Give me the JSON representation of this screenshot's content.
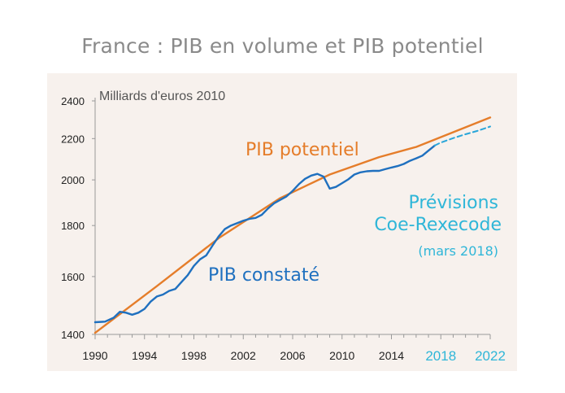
{
  "title": "France : PIB en volume et PIB potentiel",
  "colors": {
    "potential": "#e57d2a",
    "observed": "#1f70bf",
    "forecast": "#2aa6d9",
    "forecast_label": "#2fb6d8",
    "axis": "#999999",
    "background": "#f7f1ed"
  },
  "chart_data": {
    "type": "line",
    "title": "France : PIB en volume et PIB potentiel",
    "ylabel": "Milliards d'euros 2010",
    "xlim": [
      1990,
      2022
    ],
    "ylim": [
      1400,
      2400
    ],
    "yscale": "log",
    "yticks": [
      1400,
      1600,
      1800,
      2000,
      2200,
      2400
    ],
    "xticks": [
      1990,
      1994,
      1998,
      2002,
      2006,
      2010,
      2014
    ],
    "xticks_forecast": [
      2018,
      2022
    ],
    "series": [
      {
        "name": "PIB potentiel",
        "points": [
          [
            1990,
            1405
          ],
          [
            1995,
            1565
          ],
          [
            2000,
            1748
          ],
          [
            2005,
            1918
          ],
          [
            2009,
            2025
          ],
          [
            2013,
            2108
          ],
          [
            2016,
            2158
          ],
          [
            2022,
            2310
          ]
        ]
      },
      {
        "name": "PIB constaté",
        "points": [
          [
            1990,
            1440
          ],
          [
            1990.8,
            1442
          ],
          [
            1991.5,
            1455
          ],
          [
            1992,
            1475
          ],
          [
            1992.5,
            1472
          ],
          [
            1993,
            1465
          ],
          [
            1993.5,
            1472
          ],
          [
            1994,
            1485
          ],
          [
            1994.5,
            1510
          ],
          [
            1995,
            1528
          ],
          [
            1995.5,
            1535
          ],
          [
            1996,
            1548
          ],
          [
            1996.5,
            1555
          ],
          [
            1997,
            1580
          ],
          [
            1997.5,
            1605
          ],
          [
            1998,
            1640
          ],
          [
            1998.5,
            1665
          ],
          [
            1999,
            1680
          ],
          [
            1999.5,
            1718
          ],
          [
            2000,
            1755
          ],
          [
            2000.5,
            1785
          ],
          [
            2001,
            1800
          ],
          [
            2001.5,
            1810
          ],
          [
            2002,
            1820
          ],
          [
            2002.5,
            1828
          ],
          [
            2003,
            1832
          ],
          [
            2003.5,
            1845
          ],
          [
            2004,
            1872
          ],
          [
            2004.5,
            1895
          ],
          [
            2005,
            1910
          ],
          [
            2005.5,
            1925
          ],
          [
            2006,
            1950
          ],
          [
            2006.5,
            1980
          ],
          [
            2007,
            2005
          ],
          [
            2007.5,
            2020
          ],
          [
            2008,
            2028
          ],
          [
            2008.5,
            2015
          ],
          [
            2009,
            1960
          ],
          [
            2009.5,
            1968
          ],
          [
            2010,
            1985
          ],
          [
            2010.5,
            2002
          ],
          [
            2011,
            2025
          ],
          [
            2011.5,
            2035
          ],
          [
            2012,
            2040
          ],
          [
            2012.5,
            2042
          ],
          [
            2013,
            2042
          ],
          [
            2013.5,
            2050
          ],
          [
            2014,
            2058
          ],
          [
            2014.5,
            2065
          ],
          [
            2015,
            2075
          ],
          [
            2015.5,
            2090
          ],
          [
            2016,
            2102
          ],
          [
            2016.5,
            2115
          ],
          [
            2017,
            2140
          ],
          [
            2017.5,
            2165
          ]
        ]
      },
      {
        "name": "Prévisions Coe-Rexecode",
        "style": "dashed",
        "points": [
          [
            2017.5,
            2165
          ],
          [
            2018,
            2180
          ],
          [
            2019,
            2202
          ],
          [
            2020,
            2222
          ],
          [
            2021,
            2240
          ],
          [
            2022,
            2262
          ]
        ]
      }
    ],
    "annotations": {
      "unit": "Milliards d'euros 2010",
      "potential": "PIB potentiel",
      "observed": "PIB constaté",
      "forecast_line1": "Prévisions",
      "forecast_line2": "Coe-Rexecode",
      "forecast_date": "(mars 2018)"
    }
  }
}
